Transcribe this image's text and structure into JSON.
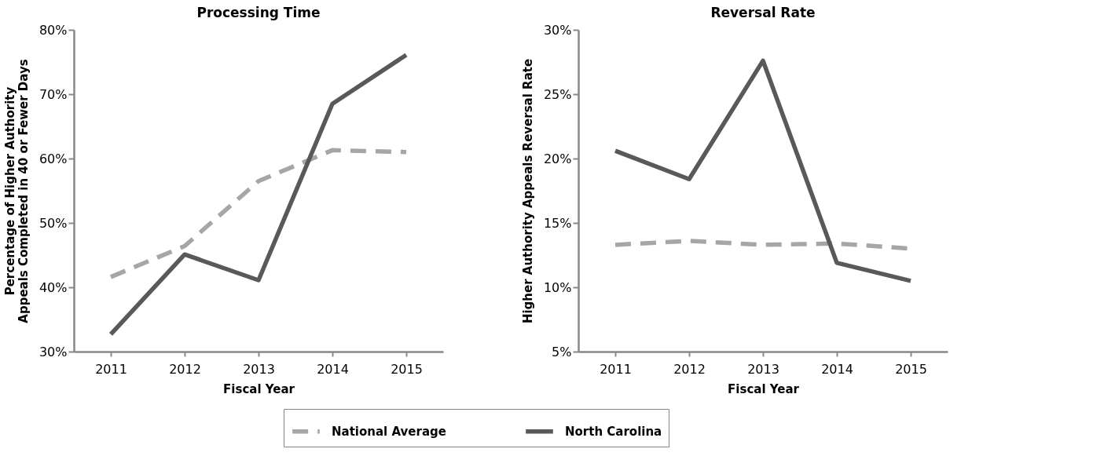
{
  "chart_data": [
    {
      "type": "line",
      "title": "Processing Time",
      "xlabel": "Fiscal Year",
      "ylabel": "Percentage of Higher Authority Appeals Completed in 40 or Fewer Days",
      "categories": [
        "2011",
        "2012",
        "2013",
        "2014",
        "2015"
      ],
      "series": [
        {
          "name": "National Average",
          "color": "#a6a6a6",
          "line_style": "dashed",
          "values": [
            41.6,
            46.4,
            56.5,
            61.3,
            61.0
          ]
        },
        {
          "name": "North Carolina",
          "color": "#595959",
          "line_style": "solid",
          "values": [
            32.7,
            45.1,
            41.1,
            68.5,
            76.1
          ]
        }
      ],
      "ylim": [
        30,
        80
      ],
      "yticks": [
        {
          "value": 30,
          "label": "30%"
        },
        {
          "value": 40,
          "label": "40%"
        },
        {
          "value": 50,
          "label": "50%"
        },
        {
          "value": 60,
          "label": "60%"
        },
        {
          "value": 70,
          "label": "70%"
        },
        {
          "value": 80,
          "label": "80%"
        }
      ],
      "grid": false,
      "legend": "bottom"
    },
    {
      "type": "line",
      "title": "Reversal Rate",
      "xlabel": "Fiscal Year",
      "ylabel": "Higher Authority Appeals Reversal Rate",
      "categories": [
        "2011",
        "2012",
        "2013",
        "2014",
        "2015"
      ],
      "series": [
        {
          "name": "National Average",
          "color": "#a6a6a6",
          "line_style": "dashed",
          "values": [
            13.3,
            13.6,
            13.3,
            13.4,
            13.0
          ]
        },
        {
          "name": "North Carolina",
          "color": "#595959",
          "line_style": "solid",
          "values": [
            20.6,
            18.4,
            27.6,
            11.9,
            10.5
          ]
        }
      ],
      "ylim": [
        5,
        30
      ],
      "yticks": [
        {
          "value": 5,
          "label": "5%"
        },
        {
          "value": 10,
          "label": "10%"
        },
        {
          "value": 15,
          "label": "15%"
        },
        {
          "value": 20,
          "label": "20%"
        },
        {
          "value": 25,
          "label": "25%"
        },
        {
          "value": 30,
          "label": "30%"
        }
      ],
      "grid": false,
      "legend": "bottom"
    }
  ]
}
